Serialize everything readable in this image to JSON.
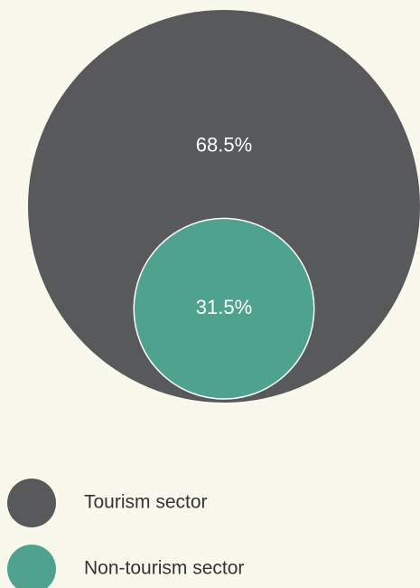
{
  "chart_data": {
    "type": "nested-circle",
    "categories": [
      "Tourism sector",
      "Non-tourism sector"
    ],
    "values": [
      68.5,
      31.5
    ],
    "value_labels": [
      "68.5%",
      "31.5%"
    ],
    "colors": [
      "#58595b",
      "#4fa38e"
    ]
  }
}
